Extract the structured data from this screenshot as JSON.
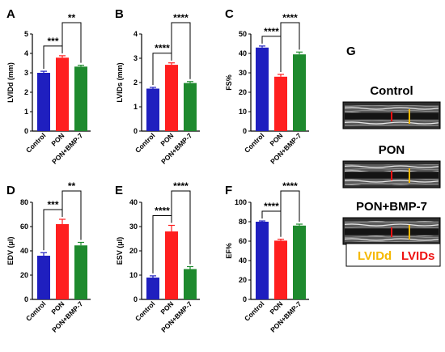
{
  "chart_data": [
    {
      "panel": "A",
      "type": "bar",
      "categories": [
        "Control",
        "PON",
        "PON+BMP-7"
      ],
      "values": [
        3.0,
        3.78,
        3.32
      ],
      "errors": [
        0.08,
        0.1,
        0.07
      ],
      "ylabel": "LVIDd (mm)",
      "ylim": [
        0,
        5
      ],
      "yticks": [
        0,
        1,
        2,
        3,
        4,
        5
      ],
      "colors": [
        "#1f1fbf",
        "#ff1f1f",
        "#1e8a2e"
      ],
      "significance": [
        {
          "from": 0,
          "to": 1,
          "label": "***"
        },
        {
          "from": 1,
          "to": 2,
          "label": "**"
        }
      ]
    },
    {
      "panel": "B",
      "type": "bar",
      "categories": [
        "Control",
        "PON",
        "PON+BMP-7"
      ],
      "values": [
        1.75,
        2.73,
        1.98
      ],
      "errors": [
        0.05,
        0.08,
        0.06
      ],
      "ylabel": "LVIDs (mm)",
      "ylim": [
        0,
        4
      ],
      "yticks": [
        0,
        1,
        2,
        3,
        4
      ],
      "colors": [
        "#1f1fbf",
        "#ff1f1f",
        "#1e8a2e"
      ],
      "significance": [
        {
          "from": 0,
          "to": 1,
          "label": "****"
        },
        {
          "from": 1,
          "to": 2,
          "label": "****"
        }
      ]
    },
    {
      "panel": "C",
      "type": "bar",
      "categories": [
        "Control",
        "PON",
        "PON+BMP-7"
      ],
      "values": [
        43,
        28,
        39.5
      ],
      "errors": [
        0.8,
        1.2,
        1.2
      ],
      "ylabel": "FS%",
      "ylim": [
        0,
        50
      ],
      "yticks": [
        0,
        10,
        20,
        30,
        40,
        50
      ],
      "colors": [
        "#1f1fbf",
        "#ff1f1f",
        "#1e8a2e"
      ],
      "significance": [
        {
          "from": 0,
          "to": 1,
          "label": "****"
        },
        {
          "from": 1,
          "to": 2,
          "label": "****"
        }
      ]
    },
    {
      "panel": "D",
      "type": "bar",
      "categories": [
        "Control",
        "PON",
        "PON+BMP-7"
      ],
      "values": [
        36,
        62,
        44.5
      ],
      "errors": [
        2.5,
        4,
        2.5
      ],
      "ylabel": "EDV (μl)",
      "ylim": [
        0,
        80
      ],
      "yticks": [
        0,
        20,
        40,
        60,
        80
      ],
      "colors": [
        "#1f1fbf",
        "#ff1f1f",
        "#1e8a2e"
      ],
      "significance": [
        {
          "from": 0,
          "to": 1,
          "label": "***"
        },
        {
          "from": 1,
          "to": 2,
          "label": "**"
        }
      ]
    },
    {
      "panel": "E",
      "type": "bar",
      "categories": [
        "Control",
        "PON",
        "PON+BMP-7"
      ],
      "values": [
        9,
        28,
        12.5
      ],
      "errors": [
        0.7,
        2.5,
        1.0
      ],
      "ylabel": "ESV (μl)",
      "ylim": [
        0,
        40
      ],
      "yticks": [
        0,
        10,
        20,
        30,
        40
      ],
      "colors": [
        "#1f1fbf",
        "#ff1f1f",
        "#1e8a2e"
      ],
      "significance": [
        {
          "from": 0,
          "to": 1,
          "label": "****"
        },
        {
          "from": 1,
          "to": 2,
          "label": "****"
        }
      ]
    },
    {
      "panel": "F",
      "type": "bar",
      "categories": [
        "Control",
        "PON",
        "PON+BMP-7"
      ],
      "values": [
        80,
        60.5,
        76
      ],
      "errors": [
        0.8,
        1.5,
        1.5
      ],
      "ylabel": "EF%",
      "ylim": [
        0,
        100
      ],
      "yticks": [
        0,
        20,
        40,
        60,
        80,
        100
      ],
      "colors": [
        "#1f1fbf",
        "#ff1f1f",
        "#1e8a2e"
      ],
      "significance": [
        {
          "from": 0,
          "to": 1,
          "label": "****"
        },
        {
          "from": 1,
          "to": 2,
          "label": "****"
        }
      ]
    }
  ],
  "panel_g": {
    "label": "G",
    "images": [
      {
        "title": "Control"
      },
      {
        "title": "PON"
      },
      {
        "title": "PON+BMP-7"
      }
    ],
    "legend": [
      {
        "text": "LVIDd",
        "color": "#f5b800"
      },
      {
        "text": "LVIDs",
        "color": "#ee1111"
      }
    ]
  }
}
